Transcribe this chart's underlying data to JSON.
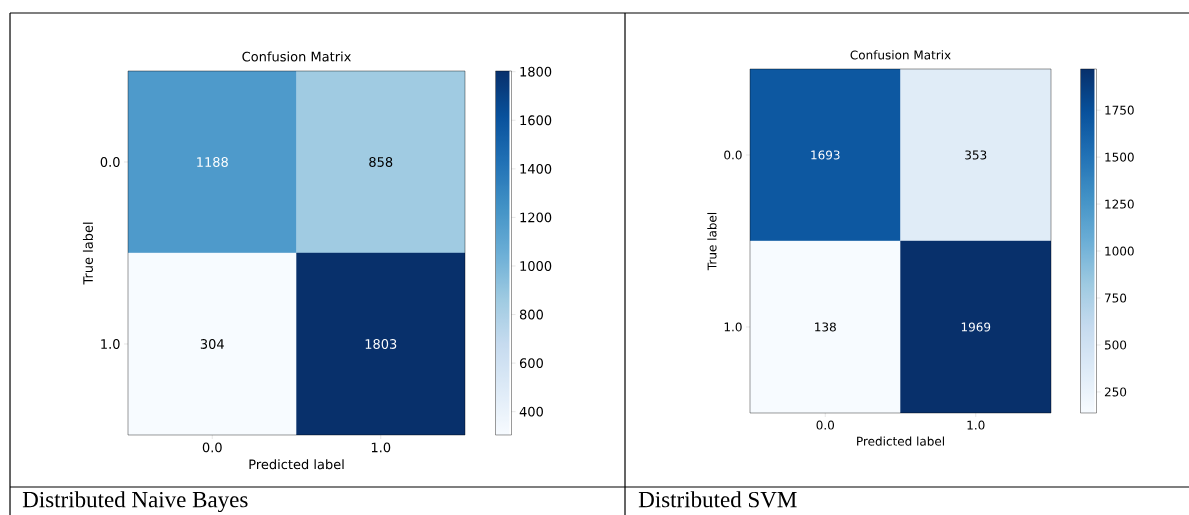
{
  "chart_data": [
    {
      "type": "heatmap",
      "title": "Confusion Matrix",
      "xlabel": "Predicted label",
      "ylabel": "True label",
      "categories": [
        "0.0",
        "1.0"
      ],
      "y_categories": [
        "0.0",
        "1.0"
      ],
      "cells": [
        [
          1188,
          858
        ],
        [
          304,
          1803
        ]
      ],
      "clim": [
        304,
        1803
      ],
      "cticks": [
        400,
        600,
        800,
        1000,
        1200,
        1400,
        1600,
        1800
      ],
      "data_labels": true,
      "annotations": [
        "Distributed Naive Bayes"
      ]
    },
    {
      "type": "heatmap",
      "title": "Confusion Matrix",
      "xlabel": "Predicted label",
      "ylabel": "True label",
      "categories": [
        "0.0",
        "1.0"
      ],
      "y_categories": [
        "0.0",
        "1.0"
      ],
      "cells": [
        [
          1693,
          353
        ],
        [
          138,
          1969
        ]
      ],
      "clim": [
        138,
        1969
      ],
      "cticks": [
        250,
        500,
        750,
        1000,
        1250,
        1500,
        1750
      ],
      "data_labels": true,
      "annotations": [
        "Distributed SVM"
      ]
    }
  ]
}
